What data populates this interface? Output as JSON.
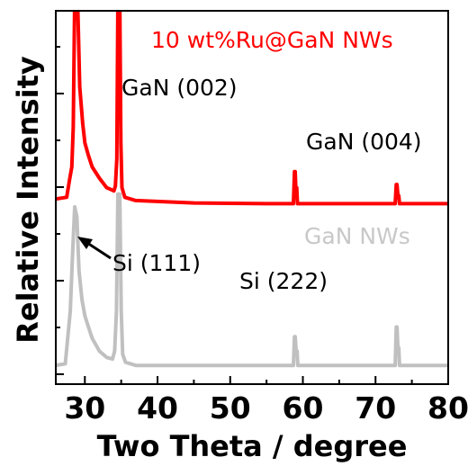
{
  "chart_data": {
    "type": "line",
    "xlabel": "Two Theta / degree",
    "ylabel": "Relative Intensity",
    "xlim": [
      26,
      80
    ],
    "x_ticks": [
      30,
      40,
      50,
      60,
      70,
      80
    ],
    "y_ticks_shown": false,
    "series": [
      {
        "name": "10 wt%Ru@GaN NWs",
        "color": "#ff0000",
        "offset": 1.0,
        "points": [
          [
            26,
            0.05
          ],
          [
            27.5,
            0.06
          ],
          [
            27.9,
            0.17
          ],
          [
            28.2,
            0.25
          ],
          [
            28.4,
            0.5
          ],
          [
            28.6,
            1.3
          ],
          [
            29.0,
            1.3
          ],
          [
            29.3,
            0.75
          ],
          [
            29.7,
            0.52
          ],
          [
            30,
            0.4
          ],
          [
            30.5,
            0.32
          ],
          [
            31,
            0.25
          ],
          [
            32,
            0.18
          ],
          [
            33,
            0.12
          ],
          [
            34,
            0.1
          ],
          [
            34.2,
            0.13
          ],
          [
            34.4,
            0.3
          ],
          [
            34.55,
            1.3
          ],
          [
            34.8,
            1.3
          ],
          [
            34.95,
            0.4
          ],
          [
            35.1,
            0.12
          ],
          [
            35.5,
            0.06
          ],
          [
            37,
            0.04
          ],
          [
            45,
            0.025
          ],
          [
            55,
            0.02
          ],
          [
            58.7,
            0.02
          ],
          [
            58.85,
            0.22
          ],
          [
            58.95,
            0.22
          ],
          [
            59.05,
            0.1
          ],
          [
            59.15,
            0.12
          ],
          [
            59.25,
            0.02
          ],
          [
            72.7,
            0.02
          ],
          [
            72.85,
            0.14
          ],
          [
            72.95,
            0.14
          ],
          [
            73.1,
            0.06
          ],
          [
            73.2,
            0.07
          ],
          [
            73.3,
            0.02
          ],
          [
            80,
            0.02
          ]
        ]
      },
      {
        "name": "GaN NWs",
        "color": "#c0c0c0",
        "offset": 0.0,
        "points": [
          [
            26,
            0.01
          ],
          [
            27.3,
            0.02
          ],
          [
            27.6,
            0.16
          ],
          [
            28.0,
            0.35
          ],
          [
            28.3,
            0.7
          ],
          [
            28.6,
            1.0
          ],
          [
            28.9,
            0.94
          ],
          [
            29.2,
            0.6
          ],
          [
            29.6,
            0.42
          ],
          [
            30,
            0.32
          ],
          [
            30.5,
            0.25
          ],
          [
            31,
            0.18
          ],
          [
            32,
            0.1
          ],
          [
            33,
            0.06
          ],
          [
            33.8,
            0.05
          ],
          [
            34.1,
            0.1
          ],
          [
            34.35,
            0.35
          ],
          [
            34.55,
            1.08
          ],
          [
            34.8,
            1.08
          ],
          [
            35.0,
            0.35
          ],
          [
            35.2,
            0.08
          ],
          [
            35.6,
            0.03
          ],
          [
            37,
            0.01
          ],
          [
            58.7,
            0.01
          ],
          [
            58.85,
            0.19
          ],
          [
            58.95,
            0.19
          ],
          [
            59.1,
            0.08
          ],
          [
            59.2,
            0.1
          ],
          [
            59.3,
            0.01
          ],
          [
            72.7,
            0.01
          ],
          [
            72.85,
            0.25
          ],
          [
            72.95,
            0.25
          ],
          [
            73.1,
            0.1
          ],
          [
            73.2,
            0.12
          ],
          [
            73.3,
            0.01
          ],
          [
            80,
            0.01
          ]
        ]
      }
    ],
    "annotations": [
      {
        "text": "10 wt%Ru@GaN NWs",
        "color": "#ff0000"
      },
      {
        "text": "GaN (002)",
        "color": "#000000"
      },
      {
        "text": "GaN (004)",
        "color": "#000000"
      },
      {
        "text": "GaN NWs",
        "color": "#c8c8c8"
      },
      {
        "text": "Si (111)",
        "color": "#000000"
      },
      {
        "text": "Si (222)",
        "color": "#000000"
      }
    ],
    "grid": false
  }
}
